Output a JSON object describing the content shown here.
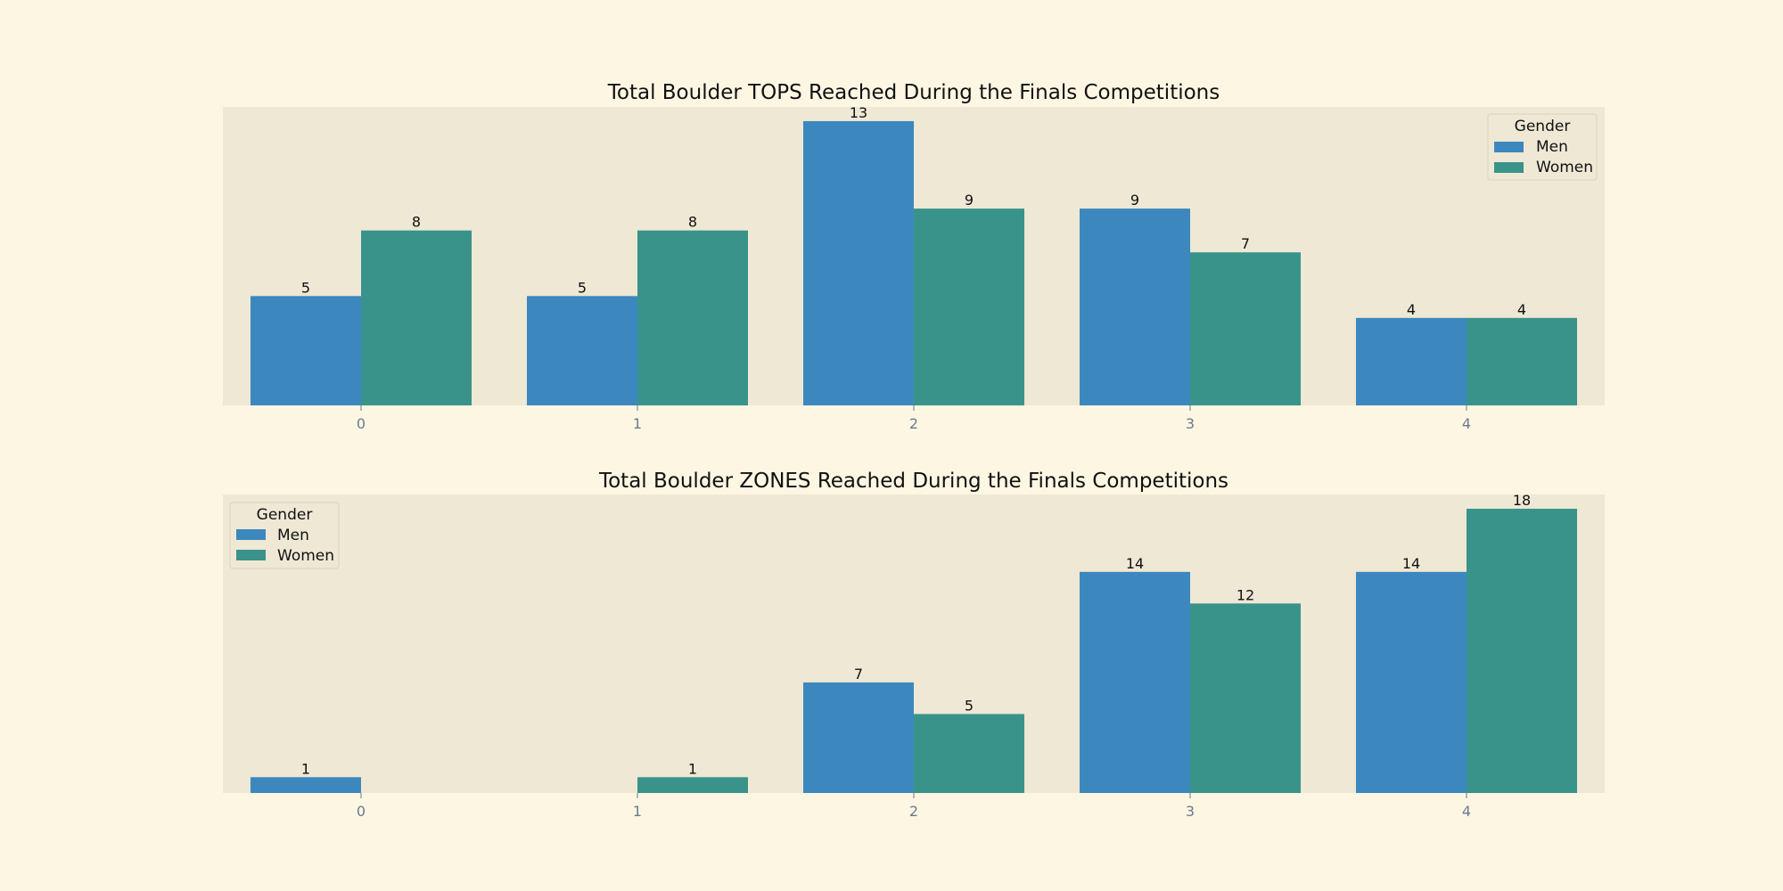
{
  "colors": {
    "background": "#fdf6e3",
    "axes": "#eee8d5",
    "men": "#3c88be",
    "women": "#3a938a"
  },
  "chart_data": [
    {
      "type": "bar",
      "title": "Total Boulder TOPS Reached During the Finals Competitions",
      "xlabel": "",
      "ylabel": "",
      "categories": [
        "0",
        "1",
        "2",
        "3",
        "4"
      ],
      "series": [
        {
          "name": "Men",
          "values": [
            5,
            5,
            13,
            9,
            4
          ]
        },
        {
          "name": "Women",
          "values": [
            8,
            8,
            9,
            7,
            4
          ]
        }
      ],
      "ylim": [
        0,
        13.65
      ],
      "legend": {
        "title": "Gender",
        "position": "upper-right"
      },
      "grid": false
    },
    {
      "type": "bar",
      "title": "Total Boulder ZONES Reached During the Finals Competitions",
      "xlabel": "",
      "ylabel": "",
      "categories": [
        "0",
        "1",
        "2",
        "3",
        "4"
      ],
      "series": [
        {
          "name": "Men",
          "values": [
            1,
            0,
            7,
            14,
            14
          ]
        },
        {
          "name": "Women",
          "values": [
            0,
            1,
            5,
            12,
            18
          ]
        }
      ],
      "ylim": [
        0,
        18.9
      ],
      "legend": {
        "title": "Gender",
        "position": "upper-left"
      },
      "grid": false
    }
  ]
}
